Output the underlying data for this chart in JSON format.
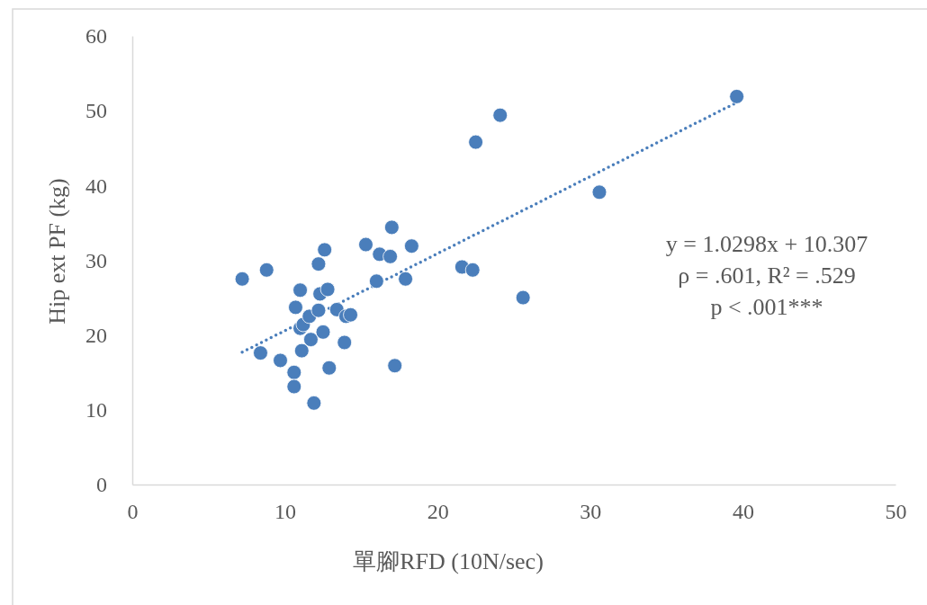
{
  "chart_data": {
    "type": "scatter",
    "xlabel": "單腳RFD (10N/sec)",
    "ylabel": "Hip ext PF (kg)",
    "xlim": [
      0,
      50
    ],
    "xticks": [
      0,
      10,
      20,
      30,
      40,
      50
    ],
    "ylim": [
      0,
      60
    ],
    "yticks": [
      0,
      10,
      20,
      30,
      40,
      50,
      60
    ],
    "grid": false,
    "series": [
      {
        "color": "#4a7ebb",
        "marker": "circle",
        "x": [
          7.2,
          8.8,
          8.4,
          9.7,
          10.6,
          10.6,
          11.9,
          11.0,
          10.7,
          11.0,
          11.2,
          11.1,
          11.6,
          11.7,
          12.2,
          12.6,
          12.3,
          12.8,
          12.2,
          12.5,
          12.9,
          13.4,
          14.0,
          14.3,
          13.9,
          15.3,
          17.0,
          16.2,
          16.9,
          18.3,
          16.0,
          17.9,
          17.2,
          21.6,
          22.3,
          22.5,
          24.1,
          25.6,
          30.6,
          39.6
        ],
        "values": [
          27.5,
          28.7,
          17.6,
          16.6,
          15.0,
          13.1,
          10.9,
          26.0,
          23.7,
          20.9,
          21.4,
          17.9,
          22.5,
          19.4,
          29.5,
          31.4,
          25.5,
          26.1,
          23.3,
          20.4,
          15.6,
          23.4,
          22.5,
          22.7,
          19.0,
          32.1,
          34.4,
          30.8,
          30.5,
          31.9,
          27.2,
          27.5,
          15.9,
          29.1,
          28.7,
          45.8,
          49.4,
          25.0,
          39.1,
          51.9
        ]
      },
      {
        "type": "line",
        "color": "#4a7ebb",
        "line_style": "dotted",
        "marker": "none",
        "x": [
          7.2,
          39.6
        ],
        "values": [
          17.7,
          51.1
        ]
      }
    ],
    "annotations": [
      "y = 1.0298x + 10.307",
      "ρ = .601, R² = .529",
      "p < .001***"
    ]
  }
}
